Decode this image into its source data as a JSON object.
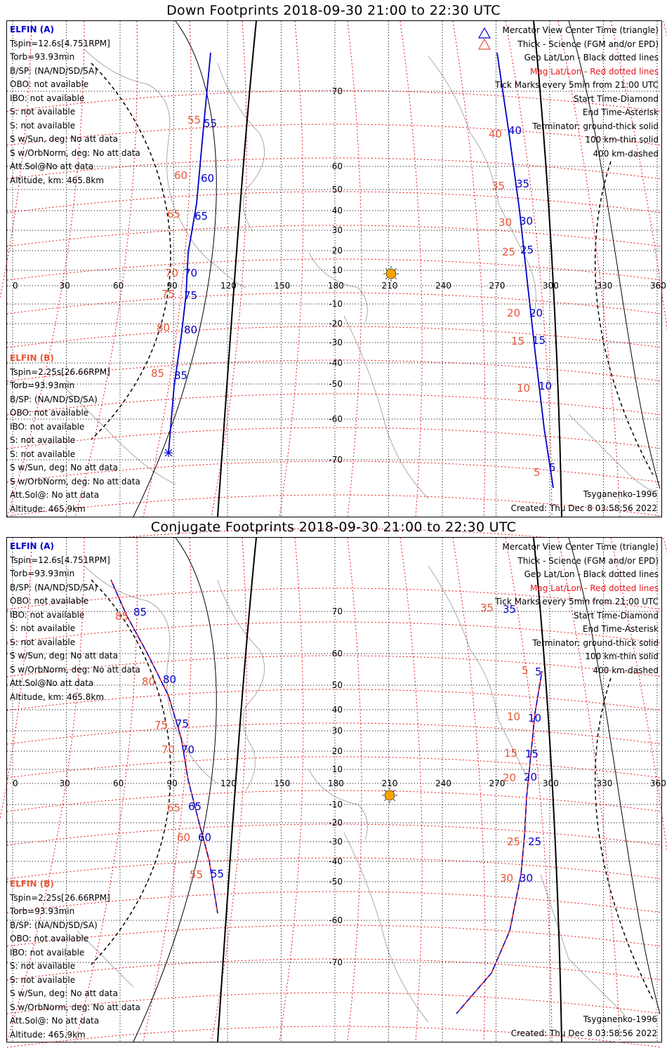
{
  "panels": [
    {
      "title": "Down Footprints 2018-09-30 21:00 to 22:30 UTC",
      "elfin_a": [
        "ELFIN (A)",
        "Tspin=12.6s[4.751RPM]",
        "Torb=93.93min",
        "B/SP: (NA/ND/SD/SA)",
        "OBO: not available",
        "IBO: not available",
        "S: not available",
        "S: not available",
        "S w/Sun, deg: No att data",
        "S w/OrbNorm, deg: No att data",
        "Att.Sol@No att data",
        "Altitude, km: 465.8km"
      ],
      "elfin_b": [
        "ELFIN (B)",
        "Tspin=2.25s[26.66RPM]",
        "Torb=93.93min",
        "B/SP: (NA/ND/SD/SA)",
        "OBO: not available",
        "IBO: not available",
        "S: not available",
        "S: not available",
        "S w/Sun, deg: No att data",
        "S w/OrbNorm, deg: No att data",
        "Att.Sol@: No att data",
        "Altitude: 465.9km"
      ],
      "legend": [
        "Mercator View Center Time (triangle)",
        "Thick - Science (FGM and/or EPD)",
        "Geo Lat/Lon - Black dotted lines",
        "Mag Lat/Lon - Red dotted lines",
        "Tick Marks every 5min from 21:00 UTC",
        "Start Time-Diamond",
        "End Time-Asterisk",
        "Terminator: ground-thick solid",
        "100 km-thin solid",
        "400 km-dashed"
      ],
      "model": "Tsyganenko-1996",
      "created": "Created: Thu Dec  8 03:58:56 2022",
      "trace_a_labels": [
        "55",
        "60",
        "65",
        "70",
        "75",
        "80",
        "85"
      ],
      "trace_b_labels": [
        "40",
        "35",
        "30",
        "25",
        "20",
        "15",
        "10",
        "5"
      ]
    },
    {
      "title": "Conjugate Footprints 2018-09-30 21:00 to 22:30 UTC",
      "elfin_a": [
        "ELFIN (A)",
        "Tspin=12.6s[4.751RPM]",
        "Torb=93.93min",
        "B/SP: (NA/ND/SD/SA)",
        "OBO: not available",
        "IBO: not available",
        "S: not available",
        "S: not available",
        "S w/Sun, deg: No att data",
        "S w/OrbNorm, deg: No att data",
        "Att.Sol@No att data",
        "Altitude, km: 465.8km"
      ],
      "elfin_b": [
        "ELFIN (B)",
        "Tspin=2.25s[26.66RPM]",
        "Torb=93.93min",
        "B/SP: (NA/ND/SD/SA)",
        "OBO: not available",
        "IBO: not available",
        "S: not available",
        "S: not available",
        "S w/Sun, deg: No att data",
        "S w/OrbNorm, deg: No att data",
        "Att.Sol@: No att data",
        "Altitude: 465.9km"
      ],
      "legend": [
        "Mercator View Center Time (triangle)",
        "Thick - Science (FGM and/or EPD)",
        "Geo Lat/Lon - Black dotted lines",
        "Mag Lat/Lon - Red dotted lines",
        "Tick Marks every 5min from 21:00 UTC",
        "Start Time-Diamond",
        "End Time-Asterisk",
        "Terminator: ground-thick solid",
        "100 km-thin solid",
        "400 km-dashed"
      ],
      "model": "Tsyganenko-1996",
      "created": "Created: Thu Dec  8 03:58:56 2022",
      "trace_a_labels": [
        "85",
        "80",
        "75",
        "70",
        "65",
        "60",
        "55"
      ],
      "trace_b_labels": [
        "5",
        "10",
        "15",
        "20",
        "25",
        "30",
        "35"
      ]
    }
  ],
  "lon_ticks": [
    "0",
    "30",
    "60",
    "90",
    "120",
    "150",
    "180",
    "210",
    "240",
    "270",
    "300",
    "330",
    "360"
  ],
  "lat_ticks": [
    "70",
    "60",
    "50",
    "40",
    "30",
    "20",
    "10",
    "-10",
    "-20",
    "-30",
    "-40",
    "-50",
    "-60",
    "-70"
  ],
  "colors": {
    "elfin_a": "#0000c8",
    "elfin_b": "#e8553a",
    "mag_grid": "#e8161c",
    "sun": "#f5a300",
    "land": "#aaaaaa"
  }
}
